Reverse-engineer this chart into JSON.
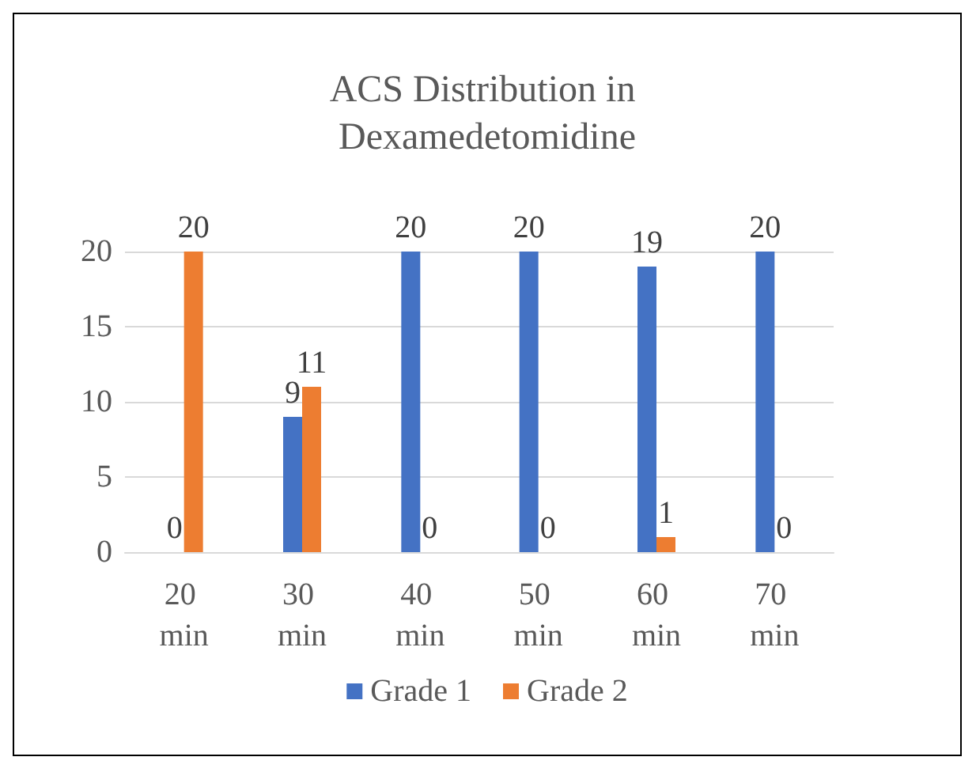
{
  "chart_data": {
    "type": "bar",
    "title": "ACS Distribution in Dexamedetomidine",
    "categories": [
      "20 min",
      "30 min",
      "40 min",
      "50 min",
      "60 min",
      "70 min"
    ],
    "series": [
      {
        "name": "Grade 1",
        "color": "#4472c4",
        "values": [
          0,
          9,
          20,
          20,
          19,
          20
        ]
      },
      {
        "name": "Grade 2",
        "color": "#ed7d31",
        "values": [
          20,
          11,
          0,
          0,
          1,
          0
        ]
      }
    ],
    "ylim": [
      0,
      20
    ],
    "yticks": [
      0,
      5,
      10,
      15,
      20
    ],
    "grid": "y",
    "legend": "bottom",
    "data_labels": true
  }
}
